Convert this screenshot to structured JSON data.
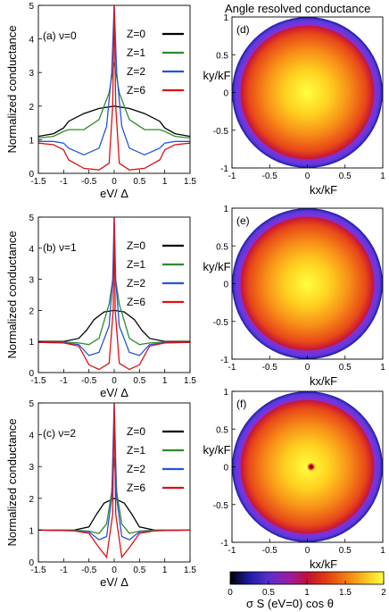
{
  "figure": {
    "right_title": "Angle resolved conductance"
  },
  "chart_data": [
    {
      "type": "line",
      "panel_label": "(a) ν=0",
      "xlabel": "eV/ Δ",
      "ylabel": "Normalized conductance",
      "xlim": [
        -1.5,
        1.5
      ],
      "ylim": [
        0,
        5
      ],
      "xticks": [
        "-1.5",
        "-1",
        "-0.5",
        "0",
        "0.5",
        "1",
        "1.5"
      ],
      "yticks": [
        "0",
        "1",
        "2",
        "3",
        "4",
        "5"
      ],
      "legend_position": "top-right",
      "series": [
        {
          "name": "Z=0",
          "color": "#000000",
          "x": [
            -1.5,
            -1.2,
            -1.0,
            -0.9,
            -0.6,
            -0.3,
            0,
            0.3,
            0.6,
            0.9,
            1.0,
            1.2,
            1.5
          ],
          "y": [
            1.1,
            1.18,
            1.35,
            1.55,
            1.78,
            1.93,
            2.0,
            1.93,
            1.78,
            1.55,
            1.35,
            1.18,
            1.1
          ]
        },
        {
          "name": "Z=1",
          "color": "#2e8b2e",
          "x": [
            -1.5,
            -1.2,
            -1.0,
            -0.9,
            -0.6,
            -0.3,
            -0.1,
            0,
            0.1,
            0.3,
            0.6,
            0.9,
            1.0,
            1.2,
            1.5
          ],
          "y": [
            1.05,
            1.1,
            1.25,
            1.3,
            1.3,
            1.6,
            2.4,
            3.3,
            2.4,
            1.6,
            1.3,
            1.3,
            1.25,
            1.1,
            1.05
          ]
        },
        {
          "name": "Z=2",
          "color": "#2255dd",
          "x": [
            -1.5,
            -1.2,
            -1.0,
            -0.9,
            -0.6,
            -0.3,
            -0.15,
            -0.05,
            0,
            0.05,
            0.15,
            0.3,
            0.6,
            0.9,
            1.0,
            1.2,
            1.5
          ],
          "y": [
            0.95,
            0.95,
            0.9,
            0.75,
            0.55,
            0.75,
            1.4,
            3.0,
            5.0,
            3.0,
            1.4,
            0.75,
            0.55,
            0.75,
            0.9,
            0.95,
            0.95
          ]
        },
        {
          "name": "Z=6",
          "color": "#dd1111",
          "x": [
            -1.5,
            -1.2,
            -1.0,
            -0.9,
            -0.6,
            -0.3,
            -0.1,
            -0.03,
            0,
            0.03,
            0.1,
            0.3,
            0.6,
            0.9,
            1.0,
            1.2,
            1.5
          ],
          "y": [
            0.9,
            0.85,
            0.7,
            0.4,
            0.15,
            0.1,
            0.3,
            2.0,
            5.0,
            2.0,
            0.3,
            0.1,
            0.15,
            0.4,
            0.7,
            0.85,
            0.9
          ]
        }
      ]
    },
    {
      "type": "line",
      "panel_label": "(b) ν=1",
      "xlabel": "eV/ Δ",
      "ylabel": "Normalized conductance",
      "xlim": [
        -1.5,
        1.5
      ],
      "ylim": [
        0,
        5
      ],
      "xticks": [
        "-1.5",
        "-1",
        "-0.5",
        "0",
        "0.5",
        "1",
        "1.5"
      ],
      "yticks": [
        "0",
        "1",
        "2",
        "3",
        "4",
        "5"
      ],
      "legend_position": "top-right",
      "series": [
        {
          "name": "Z=0",
          "color": "#000000",
          "x": [
            -1.5,
            -1.0,
            -0.7,
            -0.55,
            -0.4,
            -0.2,
            0,
            0.2,
            0.4,
            0.55,
            0.7,
            1.0,
            1.5
          ],
          "y": [
            1.0,
            1.0,
            1.1,
            1.35,
            1.7,
            1.95,
            2.0,
            1.95,
            1.7,
            1.35,
            1.1,
            1.0,
            1.0
          ]
        },
        {
          "name": "Z=1",
          "color": "#2e8b2e",
          "x": [
            -1.5,
            -1.0,
            -0.7,
            -0.5,
            -0.3,
            -0.1,
            0,
            0.1,
            0.3,
            0.5,
            0.7,
            1.0,
            1.5
          ],
          "y": [
            0.98,
            0.98,
            0.95,
            0.9,
            1.1,
            2.2,
            3.3,
            2.2,
            1.1,
            0.9,
            0.95,
            0.98,
            0.98
          ]
        },
        {
          "name": "Z=2",
          "color": "#2255dd",
          "x": [
            -1.5,
            -1.0,
            -0.7,
            -0.5,
            -0.3,
            -0.1,
            -0.03,
            0,
            0.03,
            0.1,
            0.3,
            0.5,
            0.7,
            1.0,
            1.5
          ],
          "y": [
            0.97,
            0.96,
            0.9,
            0.55,
            0.65,
            1.5,
            3.0,
            5.0,
            3.0,
            1.5,
            0.65,
            0.55,
            0.9,
            0.96,
            0.97
          ]
        },
        {
          "name": "Z=6",
          "color": "#dd1111",
          "x": [
            -1.5,
            -1.0,
            -0.7,
            -0.5,
            -0.3,
            -0.1,
            -0.02,
            0,
            0.02,
            0.1,
            0.3,
            0.5,
            0.7,
            1.0,
            1.5
          ],
          "y": [
            0.97,
            0.95,
            0.85,
            0.25,
            0.1,
            0.3,
            2.0,
            5.0,
            2.0,
            0.3,
            0.1,
            0.25,
            0.85,
            0.95,
            0.97
          ]
        }
      ]
    },
    {
      "type": "line",
      "panel_label": "(c) ν=2",
      "xlabel": "eV/ Δ",
      "ylabel": "Normalized conductance",
      "xlim": [
        -1.5,
        1.5
      ],
      "ylim": [
        0,
        5
      ],
      "xticks": [
        "-1.5",
        "-1",
        "-0.5",
        "0",
        "0.5",
        "1",
        "1.5"
      ],
      "yticks": [
        "0",
        "1",
        "2",
        "3",
        "4",
        "5"
      ],
      "legend_position": "top-right",
      "series": [
        {
          "name": "Z=0",
          "color": "#000000",
          "x": [
            -1.5,
            -0.8,
            -0.5,
            -0.35,
            -0.2,
            0,
            0.2,
            0.35,
            0.5,
            0.8,
            1.5
          ],
          "y": [
            1.0,
            1.0,
            1.1,
            1.5,
            1.85,
            2.0,
            1.85,
            1.5,
            1.1,
            1.0,
            1.0
          ]
        },
        {
          "name": "Z=1",
          "color": "#2e8b2e",
          "x": [
            -1.5,
            -0.8,
            -0.5,
            -0.3,
            -0.15,
            -0.05,
            0,
            0.05,
            0.15,
            0.3,
            0.5,
            0.8,
            1.5
          ],
          "y": [
            1.0,
            1.0,
            0.97,
            0.9,
            1.2,
            2.2,
            3.3,
            2.2,
            1.2,
            0.9,
            0.97,
            1.0,
            1.0
          ]
        },
        {
          "name": "Z=2",
          "color": "#2255dd",
          "x": [
            -1.5,
            -0.8,
            -0.5,
            -0.3,
            -0.15,
            -0.05,
            0,
            0.05,
            0.15,
            0.3,
            0.5,
            0.8,
            1.5
          ],
          "y": [
            1.0,
            0.98,
            0.95,
            0.7,
            0.8,
            2.0,
            5.0,
            2.0,
            0.8,
            0.7,
            0.95,
            0.98,
            1.0
          ]
        },
        {
          "name": "Z=6",
          "color": "#dd1111",
          "x": [
            -1.5,
            -0.8,
            -0.5,
            -0.3,
            -0.15,
            -0.03,
            0,
            0.03,
            0.15,
            0.3,
            0.5,
            0.8,
            1.5
          ],
          "y": [
            1.0,
            0.98,
            0.9,
            0.45,
            0.15,
            1.5,
            5.0,
            1.5,
            0.15,
            0.45,
            0.9,
            0.98,
            1.0
          ]
        }
      ]
    },
    {
      "type": "heatmap",
      "panel_label": "(d)",
      "xlabel": "kx/kF",
      "ylabel": "ky/kF",
      "xlim": [
        -1,
        1
      ],
      "ylim": [
        -1,
        1
      ],
      "xticks": [
        "-1",
        "-0.5",
        "0",
        "0.5",
        "1"
      ],
      "yticks": [
        "-1",
        "-0.5",
        "0",
        "0.5",
        "1"
      ],
      "description": "disk of radius 1; angle-resolved conductance ~2 at center, decreasing toward edge",
      "center_value": 2.0,
      "rim_value": 0.35,
      "center_spot": false
    },
    {
      "type": "heatmap",
      "panel_label": "(e)",
      "xlabel": "kx/kF",
      "ylabel": "ky/kF",
      "xlim": [
        -1,
        1
      ],
      "ylim": [
        -1,
        1
      ],
      "xticks": [
        "-1",
        "-0.5",
        "0",
        "0.5",
        "1"
      ],
      "yticks": [
        "-1",
        "-0.5",
        "0",
        "0.5",
        "1"
      ],
      "center_value": 2.0,
      "rim_value": 0.35,
      "center_spot": false
    },
    {
      "type": "heatmap",
      "panel_label": "(f)",
      "xlabel": "kx/kF",
      "ylabel": "ky/kF",
      "xlim": [
        -1,
        1
      ],
      "ylim": [
        -1,
        1
      ],
      "xticks": [
        "-1",
        "-0.5",
        "0",
        "0.5",
        "1"
      ],
      "yticks": [
        "-1",
        "-0.5",
        "0",
        "0.5",
        "1"
      ],
      "center_value": 2.0,
      "rim_value": 0.35,
      "center_spot": true
    }
  ],
  "colorbar": {
    "label": "σ S (eV=0) cos θ",
    "ticks": [
      "0",
      "0.5",
      "1",
      "1.5",
      "2"
    ],
    "range": [
      0,
      2
    ],
    "colors": [
      "#000000",
      "#1a1aa0",
      "#5a2fd0",
      "#a21a9a",
      "#c0103a",
      "#e03a10",
      "#f07a10",
      "#f8c020",
      "#ffff40"
    ]
  }
}
